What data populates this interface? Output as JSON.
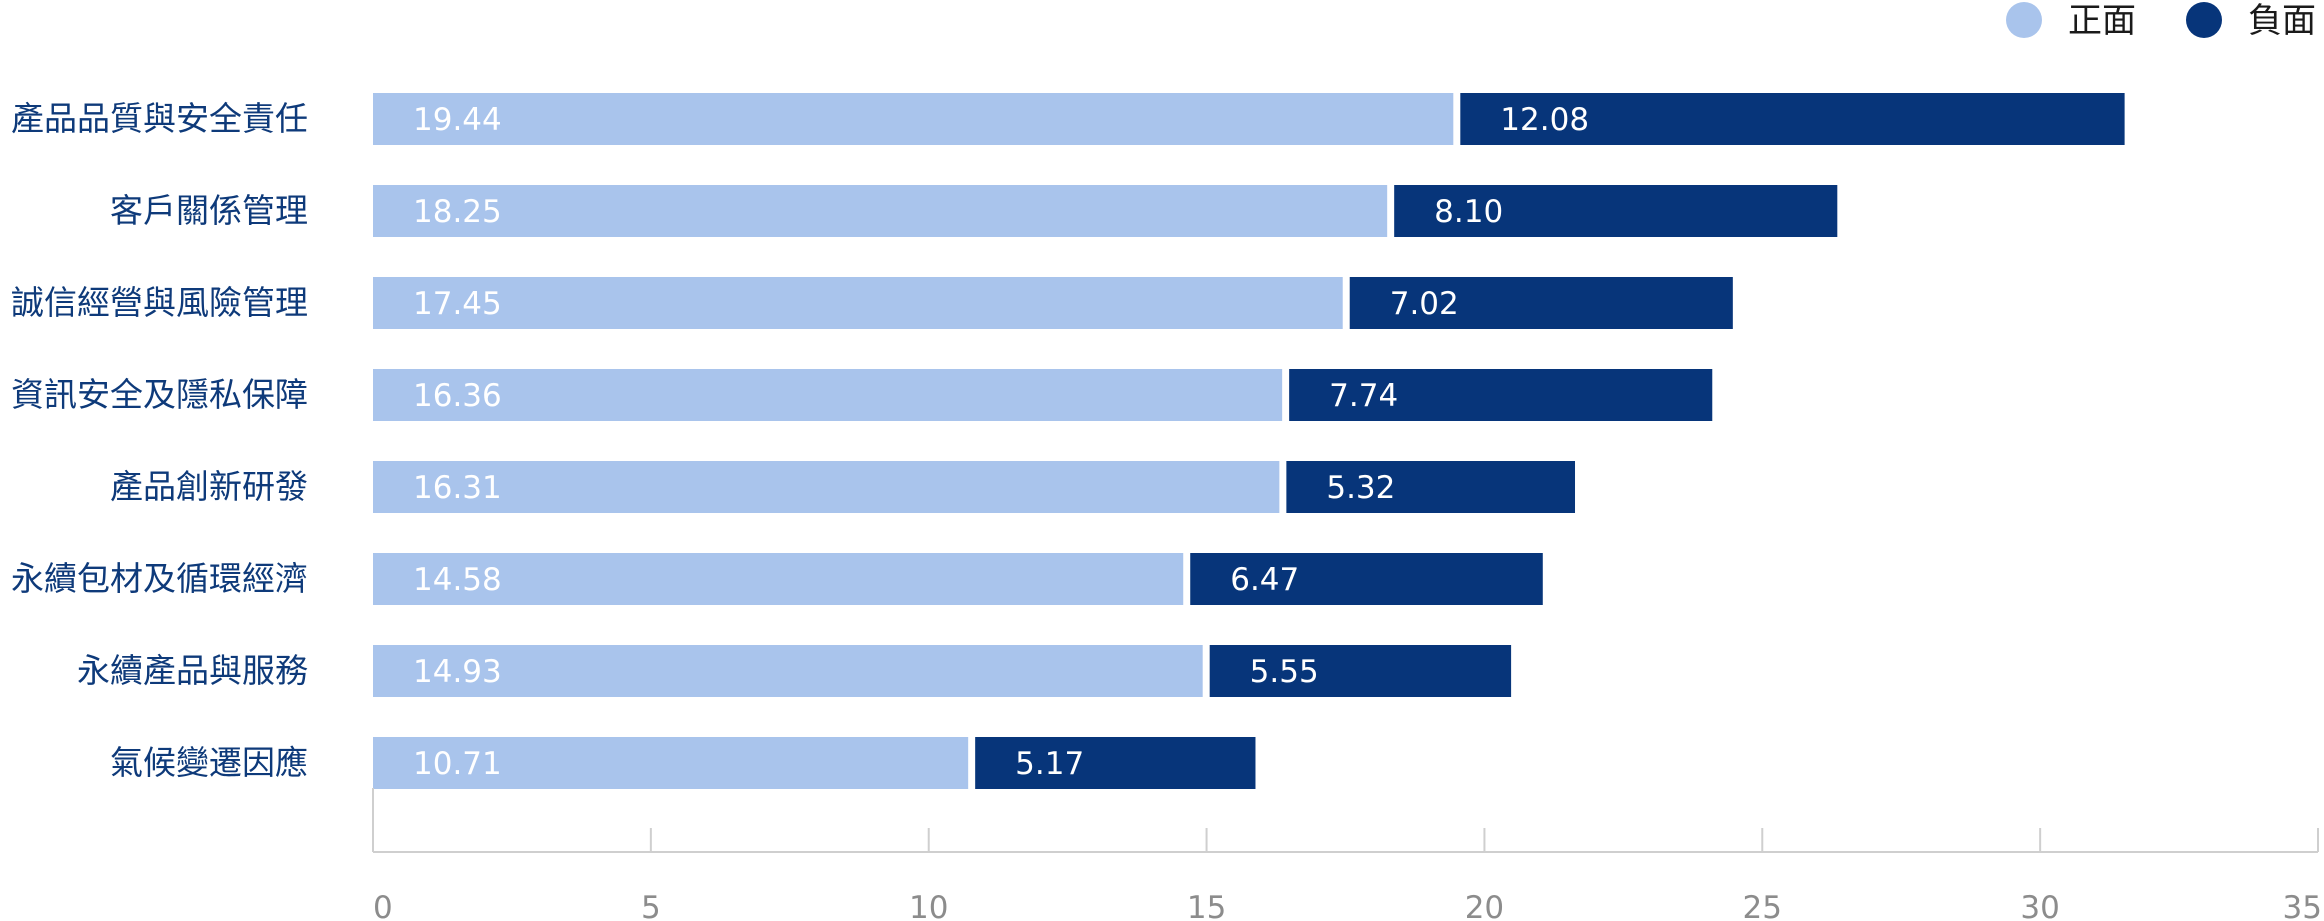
{
  "colors": {
    "positive": "#a9c4ec",
    "negative": "#07357a",
    "axis": "#cfcfcf",
    "label": "#0e3a7a"
  },
  "chart_data": {
    "type": "bar",
    "orientation": "horizontal",
    "stacked": true,
    "categories": [
      "產品品質與安全責任",
      "客戶關係管理",
      "誠信經營與風險管理",
      "資訊安全及隱私保障",
      "產品創新研發",
      "永續包材及循環經濟",
      "永續產品與服務",
      "氣候變遷因應"
    ],
    "series": [
      {
        "name": "正面",
        "values": [
          19.44,
          18.25,
          17.45,
          16.36,
          16.31,
          14.58,
          14.93,
          10.71
        ],
        "labels": [
          "19.44",
          "18.25",
          "17.45",
          "16.36",
          "16.31",
          "14.58",
          "14.93",
          "10.71"
        ]
      },
      {
        "name": "負面",
        "values": [
          12.08,
          8.1,
          7.02,
          7.74,
          5.32,
          6.47,
          5.55,
          5.17
        ],
        "labels": [
          "12.08",
          "8.10",
          "7.02",
          "7.74",
          "5.32",
          "6.47",
          "5.55",
          "5.17"
        ]
      }
    ],
    "xlim": [
      0,
      35
    ],
    "xticks": [
      0,
      5,
      10,
      15,
      20,
      25,
      30,
      35
    ],
    "legend": "top-right",
    "grid": false
  }
}
